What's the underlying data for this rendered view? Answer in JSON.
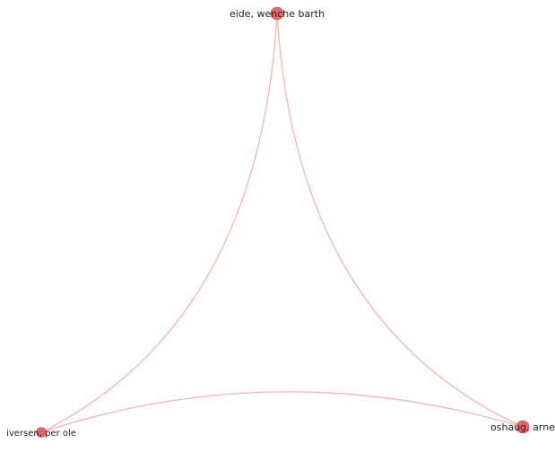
{
  "network": {
    "colors": {
      "node": "#e8656a",
      "node_dark": "#c94a50",
      "edge": "#f7b6ad",
      "label": "#222222",
      "background": "#ffffff"
    },
    "nodes": [
      {
        "id": "eide",
        "label": "eide, wenche barth"
      },
      {
        "id": "oshaug",
        "label": "oshaug, arne"
      },
      {
        "id": "iversen",
        "label": "iversen, per ole"
      }
    ],
    "edges": [
      {
        "source": "eide",
        "target": "oshaug"
      },
      {
        "source": "eide",
        "target": "iversen"
      },
      {
        "source": "oshaug",
        "target": "iversen"
      }
    ]
  }
}
